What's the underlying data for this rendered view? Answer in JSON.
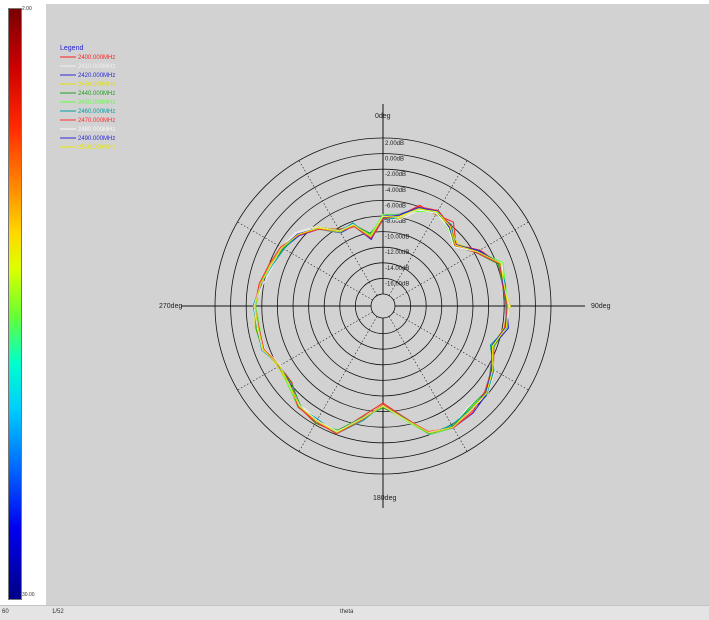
{
  "colorbar": {
    "top_label": "2.00",
    "bottom_label": "30.00",
    "colors": [
      "#7a0000",
      "#cc0000",
      "#ff2a00",
      "#ff8800",
      "#ffd800",
      "#ddff00",
      "#66ff33",
      "#00ffcc",
      "#00ccff",
      "#0066ff",
      "#0000ee",
      "#000088"
    ]
  },
  "status": {
    "left_a": "60",
    "left_b": "1/52",
    "center": "theta"
  },
  "chart_data": {
    "type": "line",
    "subtype": "polar",
    "angle_labels": {
      "top": "0deg",
      "right": "90deg",
      "bottom": "180deg",
      "left": "270deg"
    },
    "radial_ticks": [
      "2.00dB",
      "0.00dB",
      "-2.00dB",
      "-4.00dB",
      "-6.00dB",
      "-8.00dB",
      "-10.00dB",
      "-12.00dB",
      "-14.00dB",
      "-16.00dB"
    ],
    "radial_range_db": [
      -18,
      2
    ],
    "angular_spokes_deg": [
      0,
      30,
      60,
      90,
      120,
      150,
      180,
      210,
      240,
      270,
      300,
      330
    ],
    "grid": true,
    "legend_title": "Legend",
    "legend_position": "top-left",
    "angles_deg": [
      0,
      10,
      20,
      30,
      40,
      50,
      60,
      70,
      80,
      90,
      100,
      110,
      120,
      130,
      140,
      150,
      160,
      170,
      180,
      190,
      200,
      210,
      220,
      230,
      240,
      250,
      260,
      270,
      280,
      290,
      300,
      310,
      320,
      330,
      340,
      350
    ],
    "series": [
      {
        "name": "2400.000MHz",
        "color": "#ff2020",
        "values_db": [
          -8.5,
          -7.8,
          -5.8,
          -6.0,
          -5.5,
          -7.3,
          -5.2,
          -3.6,
          -4.0,
          -3.6,
          -3.5,
          -4.4,
          -3.2,
          -2.4,
          -1.9,
          -1.5,
          -2.2,
          -5.2,
          -7.1,
          -5.3,
          -2.3,
          -2.2,
          -2.7,
          -4.3,
          -4.2,
          -3.2,
          -3.2,
          -3.2,
          -3.5,
          -4.2,
          -4.6,
          -5.3,
          -6.4,
          -8.2,
          -8.6,
          -10.8
        ]
      },
      {
        "name": "2410.000MHz",
        "color": "#f0f0f0",
        "values_db": [
          -8.1,
          -8.4,
          -6.6,
          -5.6,
          -6.6,
          -7.5,
          -5.5,
          -3.2,
          -4.1,
          -3.3,
          -3.5,
          -4.9,
          -3.0,
          -2.0,
          -2.6,
          -1.7,
          -2.2,
          -5.0,
          -6.7,
          -4.7,
          -2.1,
          -2.8,
          -3.0,
          -3.9,
          -4.4,
          -3.4,
          -3.4,
          -3.0,
          -3.9,
          -4.5,
          -4.5,
          -4.9,
          -6.2,
          -8.6,
          -8.5,
          -10.4
        ]
      },
      {
        "name": "2420.000MHz",
        "color": "#2a2ad8",
        "values_db": [
          -7.9,
          -7.6,
          -6.1,
          -5.4,
          -6.4,
          -7.4,
          -5.3,
          -3.7,
          -3.6,
          -3.7,
          -3.2,
          -4.5,
          -3.6,
          -2.1,
          -1.6,
          -1.5,
          -2.0,
          -4.9,
          -6.8,
          -4.8,
          -2.3,
          -2.6,
          -2.6,
          -3.7,
          -4.1,
          -3.2,
          -3.4,
          -2.9,
          -3.7,
          -4.0,
          -4.8,
          -5.5,
          -6.7,
          -8.7,
          -8.6,
          -10.9
        ]
      },
      {
        "name": "2430.000MHz",
        "color": "#e0e000",
        "values_db": [
          -8.0,
          -8.2,
          -6.1,
          -5.9,
          -6.2,
          -7.1,
          -5.6,
          -3.7,
          -4.0,
          -3.2,
          -3.8,
          -4.6,
          -3.5,
          -2.3,
          -2.4,
          -1.6,
          -2.4,
          -4.9,
          -6.6,
          -5.1,
          -2.5,
          -2.5,
          -2.8,
          -3.7,
          -4.0,
          -3.3,
          -2.9,
          -3.1,
          -3.5,
          -4.1,
          -4.4,
          -5.3,
          -6.3,
          -8.3,
          -8.6,
          -10.4
        ]
      },
      {
        "name": "2440.000MHz",
        "color": "#20a020",
        "values_db": [
          -8.3,
          -7.9,
          -6.4,
          -5.4,
          -6.2,
          -7.6,
          -5.8,
          -3.8,
          -4.0,
          -3.7,
          -3.6,
          -4.4,
          -3.5,
          -2.4,
          -2.4,
          -1.7,
          -2.2,
          -5.0,
          -6.5,
          -5.1,
          -2.6,
          -2.2,
          -3.0,
          -4.2,
          -4.2,
          -3.1,
          -3.0,
          -3.2,
          -3.5,
          -4.2,
          -4.8,
          -5.2,
          -6.5,
          -8.3,
          -8.4,
          -10.1
        ]
      },
      {
        "name": "2450.000MHz",
        "color": "#60ff40",
        "values_db": [
          -7.8,
          -7.6,
          -6.6,
          -5.7,
          -6.6,
          -7.6,
          -5.5,
          -3.2,
          -3.6,
          -3.5,
          -3.6,
          -4.5,
          -3.3,
          -2.3,
          -2.3,
          -1.5,
          -2.0,
          -4.8,
          -6.8,
          -4.8,
          -2.5,
          -2.5,
          -2.6,
          -3.7,
          -4.2,
          -3.1,
          -3.5,
          -3.2,
          -3.5,
          -4.2,
          -4.6,
          -5.3,
          -6.7,
          -8.6,
          -8.5,
          -10.3
        ]
      },
      {
        "name": "2460.000MHz",
        "color": "#00a0a0",
        "values_db": [
          -8.5,
          -8.0,
          -6.3,
          -5.8,
          -5.9,
          -7.5,
          -5.7,
          -3.6,
          -3.6,
          -3.8,
          -3.4,
          -4.9,
          -3.1,
          -2.1,
          -2.2,
          -1.9,
          -2.1,
          -5.1,
          -6.9,
          -4.6,
          -2.1,
          -2.8,
          -2.7,
          -4.0,
          -4.3,
          -3.0,
          -3.2,
          -2.9,
          -3.6,
          -4.4,
          -4.9,
          -5.3,
          -6.5,
          -8.5,
          -8.2,
          -10.6
        ]
      },
      {
        "name": "2470.000MHz",
        "color": "#ff3030",
        "values_db": [
          -8.4,
          -7.7,
          -6.0,
          -5.4,
          -6.1,
          -7.5,
          -5.8,
          -3.6,
          -4.0,
          -3.6,
          -3.7,
          -4.6,
          -3.4,
          -2.5,
          -1.7,
          -1.5,
          -2.4,
          -5.0,
          -6.9,
          -4.8,
          -2.1,
          -2.4,
          -2.6,
          -4.0,
          -4.3,
          -3.3,
          -3.4,
          -3.1,
          -3.4,
          -4.0,
          -4.4,
          -5.4,
          -6.7,
          -8.5,
          -8.7,
          -10.7
        ]
      },
      {
        "name": "2480.000MHz",
        "color": "#f8f8f8",
        "values_db": [
          -8.0,
          -8.0,
          -6.4,
          -5.8,
          -6.5,
          -7.7,
          -5.6,
          -3.4,
          -3.8,
          -3.4,
          -3.5,
          -4.6,
          -3.3,
          -2.2,
          -2.0,
          -1.6,
          -2.3,
          -4.9,
          -6.7,
          -5.0,
          -2.4,
          -2.6,
          -2.9,
          -3.9,
          -4.3,
          -3.1,
          -3.2,
          -3.0,
          -3.6,
          -4.3,
          -4.6,
          -5.1,
          -6.4,
          -8.4,
          -8.4,
          -10.5
        ]
      },
      {
        "name": "2490.000MHz",
        "color": "#2a2ad8",
        "values_db": [
          -8.2,
          -7.7,
          -6.1,
          -5.5,
          -6.3,
          -7.3,
          -5.4,
          -3.5,
          -3.9,
          -3.5,
          -3.6,
          -4.7,
          -3.4,
          -2.3,
          -2.1,
          -1.6,
          -2.2,
          -5.0,
          -6.8,
          -4.9,
          -2.3,
          -2.5,
          -2.8,
          -4.0,
          -4.2,
          -3.2,
          -3.3,
          -3.1,
          -3.6,
          -4.2,
          -4.6,
          -5.2,
          -6.5,
          -8.5,
          -8.5,
          -10.5
        ]
      },
      {
        "name": "2500.000MHz",
        "color": "#e8e800",
        "values_db": [
          -8.1,
          -7.9,
          -6.3,
          -5.6,
          -6.2,
          -7.4,
          -5.6,
          -3.5,
          -3.8,
          -3.5,
          -3.5,
          -4.6,
          -3.3,
          -2.2,
          -2.1,
          -1.6,
          -2.2,
          -5.0,
          -6.8,
          -4.9,
          -2.3,
          -2.5,
          -2.8,
          -3.9,
          -4.2,
          -3.2,
          -3.3,
          -3.1,
          -3.6,
          -4.2,
          -4.6,
          -5.3,
          -6.5,
          -8.5,
          -8.5,
          -10.5
        ]
      }
    ]
  }
}
